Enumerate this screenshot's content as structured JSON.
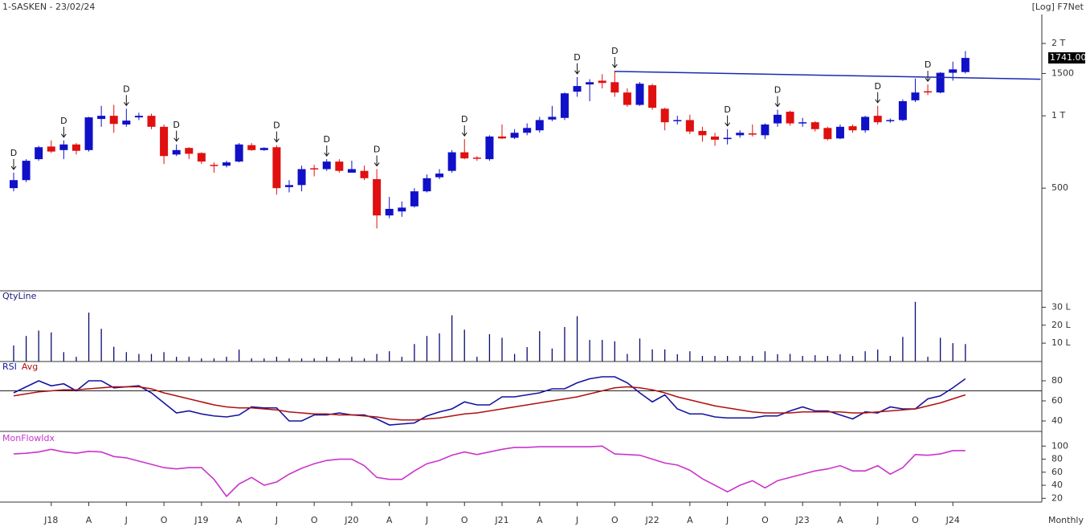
{
  "header": {
    "title": "1-SASKEN - 23/02/24",
    "scale_label": "[Log] F7Net",
    "period": "Monthly"
  },
  "chart_data": [
    {
      "type": "candlestick",
      "log": true,
      "up_color": "#1010c8",
      "down_color": "#e01010",
      "categories": [
        null,
        null,
        null,
        "J18",
        null,
        null,
        "A",
        null,
        null,
        "J",
        null,
        null,
        "O",
        null,
        null,
        "J19",
        null,
        null,
        "A",
        null,
        null,
        "J",
        null,
        null,
        "O",
        null,
        null,
        "J20",
        null,
        null,
        "A",
        null,
        null,
        "J",
        null,
        null,
        "O",
        null,
        null,
        "J21",
        null,
        null,
        "A",
        null,
        null,
        "J",
        null,
        null,
        "O",
        null,
        null,
        "J22",
        null,
        null,
        "A",
        null,
        null,
        "J",
        null,
        null,
        "O",
        null,
        null,
        "J23",
        null,
        null,
        "A",
        null,
        null,
        "J",
        null,
        null,
        "O",
        null,
        null,
        "J24",
        null
      ],
      "open": [
        500,
        540,
        660,
        745,
        720,
        760,
        720,
        970,
        1000,
        920,
        985,
        1000,
        900,
        690,
        735,
        700,
        625,
        620,
        645,
        755,
        720,
        740,
        505,
        515,
        605,
        600,
        645,
        580,
        590,
        545,
        385,
        400,
        420,
        485,
        555,
        590,
        705,
        670,
        660,
        820,
        810,
        850,
        870,
        965,
        980,
        1260,
        1350,
        1400,
        1380,
        1250,
        1110,
        1340,
        1070,
        950,
        960,
        865,
        820,
        800,
        830,
        845,
        830,
        930,
        1040,
        935,
        940,
        890,
        805,
        905,
        870,
        1000,
        950,
        960,
        1160,
        1265,
        1250,
        1510,
        1520
      ],
      "high": [
        580,
        660,
        750,
        790,
        790,
        770,
        990,
        1100,
        1110,
        1070,
        1030,
        1020,
        920,
        760,
        740,
        705,
        640,
        650,
        770,
        770,
        740,
        755,
        540,
        620,
        625,
        660,
        660,
        650,
        620,
        600,
        460,
        440,
        500,
        570,
        600,
        720,
        800,
        680,
        830,
        920,
        880,
        930,
        990,
        1100,
        1250,
        1450,
        1420,
        1490,
        1540,
        1300,
        1380,
        1360,
        1080,
        1000,
        1010,
        900,
        850,
        880,
        870,
        920,
        930,
        1060,
        1050,
        980,
        950,
        900,
        920,
        920,
        1000,
        1100,
        975,
        1170,
        1430,
        1350,
        1520,
        1680,
        1860
      ],
      "low": [
        485,
        530,
        650,
        700,
        660,
        690,
        710,
        900,
        850,
        900,
        960,
        880,
        630,
        680,
        660,
        630,
        580,
        610,
        640,
        715,
        715,
        470,
        480,
        485,
        560,
        590,
        580,
        580,
        540,
        340,
        375,
        380,
        415,
        480,
        545,
        580,
        660,
        650,
        650,
        800,
        800,
        830,
        850,
        950,
        960,
        1200,
        1150,
        1300,
        1200,
        1090,
        1100,
        1060,
        870,
        920,
        840,
        780,
        750,
        760,
        810,
        820,
        800,
        900,
        910,
        900,
        860,
        790,
        800,
        850,
        850,
        920,
        935,
        950,
        1140,
        1220,
        1240,
        1400,
        1500
      ],
      "close": [
        540,
        650,
        740,
        710,
        760,
        715,
        985,
        1000,
        925,
        955,
        1000,
        900,
        680,
        720,
        695,
        645,
        620,
        640,
        760,
        720,
        735,
        500,
        515,
        600,
        600,
        645,
        590,
        600,
        550,
        385,
        410,
        415,
        485,
        550,
        575,
        705,
        665,
        665,
        820,
        805,
        850,
        890,
        960,
        990,
        1240,
        1330,
        1380,
        1370,
        1250,
        1110,
        1360,
        1080,
        940,
        960,
        860,
        830,
        795,
        810,
        850,
        835,
        920,
        1010,
        930,
        940,
        880,
        800,
        900,
        870,
        990,
        940,
        960,
        1150,
        1250,
        1260,
        1510,
        1560,
        1741
      ],
      "ylim": [
        187,
        2640
      ],
      "yticks": [
        {
          "value": 2000,
          "label": "2 T"
        },
        1500,
        {
          "value": 1000,
          "label": "1 T"
        },
        500
      ],
      "annotations": [
        {
          "text": "D",
          "index": 0
        },
        {
          "text": "D",
          "index": 4
        },
        {
          "text": "D",
          "index": 9
        },
        {
          "text": "D",
          "index": 13
        },
        {
          "text": "D",
          "index": 21
        },
        {
          "text": "D",
          "index": 25
        },
        {
          "text": "D",
          "index": 29
        },
        {
          "text": "D",
          "index": 36
        },
        {
          "text": "D",
          "index": 45
        },
        {
          "text": "D",
          "index": 48
        },
        {
          "text": "D",
          "index": 57
        },
        {
          "text": "D",
          "index": 61
        },
        {
          "text": "D",
          "index": 69
        },
        {
          "text": "D",
          "index": 73
        }
      ],
      "level_line": {
        "color": "#1a2ab0",
        "x": [
          48,
          82
        ],
        "values": [
          1530,
          1420
        ]
      },
      "last_price": {
        "value": 1741,
        "label": "1741.00"
      }
    },
    {
      "type": "bar",
      "title": "QtyLine",
      "color": "#0a0a70",
      "values": [
        8.7,
        14,
        17,
        16,
        5,
        2.4,
        27,
        18,
        8,
        5,
        4,
        4,
        5,
        2.4,
        2.4,
        1.5,
        1.5,
        2.4,
        6.4,
        1.5,
        1.5,
        2.4,
        1.5,
        1.5,
        1.5,
        2.4,
        1.5,
        2.4,
        1.5,
        4,
        5.5,
        2.4,
        9.5,
        14,
        15.5,
        25.5,
        17.5,
        2.4,
        15,
        13,
        4,
        7.8,
        16.7,
        7,
        19,
        25,
        11.8,
        11.8,
        11,
        4,
        12.6,
        6.5,
        6.5,
        3.8,
        5.5,
        2.9,
        2.9,
        2.9,
        2.9,
        2.9,
        5.5,
        3.8,
        4,
        2.9,
        3.3,
        2.9,
        3.8,
        2.9,
        5.5,
        6.4,
        2.9,
        13.5,
        33,
        2.4,
        13,
        10,
        9.5
      ],
      "ylim": [
        0,
        37.8
      ],
      "yticks": [
        {
          "value": 10,
          "label": "10 L"
        },
        {
          "value": 20,
          "label": "20 L"
        },
        {
          "value": 30,
          "label": "30 L"
        }
      ]
    },
    {
      "type": "line",
      "reference_line": 70,
      "series": [
        {
          "name": "RSI",
          "color": "#1414a0",
          "values": [
            68,
            74,
            80,
            75,
            77,
            70,
            80,
            80,
            73,
            74,
            75,
            68,
            58,
            48,
            50,
            47,
            45,
            44,
            46,
            54,
            53,
            53,
            40,
            40,
            46,
            46,
            48,
            46,
            46,
            42,
            36,
            37,
            38,
            45,
            49,
            52,
            59,
            56,
            56,
            64,
            64,
            66,
            68,
            72,
            72,
            78,
            82,
            84,
            84,
            78,
            68,
            59,
            66,
            52,
            47,
            47,
            44,
            43,
            43,
            43,
            45,
            45,
            50,
            54,
            50,
            50,
            46,
            42,
            49,
            48,
            54,
            52,
            52,
            62,
            65,
            73,
            82
          ]
        },
        {
          "name": "Avg",
          "color": "#b01010",
          "values": [
            65,
            67,
            69,
            70,
            71,
            71,
            72,
            73,
            74,
            74,
            74,
            72,
            68,
            65,
            62,
            59,
            56,
            54,
            53,
            53,
            52,
            51,
            49,
            48,
            47,
            47,
            46,
            46,
            45,
            44,
            42,
            41,
            41,
            42,
            43,
            45,
            47,
            48,
            50,
            52,
            54,
            56,
            58,
            60,
            62,
            64,
            67,
            70,
            73,
            74,
            73,
            71,
            68,
            64,
            61,
            58,
            55,
            53,
            51,
            49,
            48,
            48,
            48,
            49,
            49,
            49,
            49,
            48,
            48,
            49,
            50,
            51,
            52,
            55,
            58,
            62,
            66
          ]
        }
      ],
      "ylim": [
        29.6,
        98.4
      ],
      "yticks": [
        40,
        60,
        80
      ]
    },
    {
      "type": "line",
      "series": [
        {
          "name": "MonFlowIdx",
          "color": "#cc33cc",
          "values": [
            88,
            89,
            91,
            95,
            91,
            89,
            92,
            91,
            84,
            82,
            77,
            72,
            67,
            65,
            67,
            67,
            49,
            23,
            42,
            52,
            40,
            45,
            57,
            66,
            73,
            78,
            80,
            80,
            70,
            52,
            49,
            49,
            62,
            73,
            78,
            86,
            91,
            87,
            91,
            95,
            98,
            98,
            99,
            99,
            99,
            99,
            99,
            100,
            88,
            87,
            86,
            80,
            74,
            71,
            63,
            50,
            40,
            30,
            40,
            47,
            36,
            47,
            52,
            57,
            62,
            65,
            70,
            62,
            62,
            70,
            57,
            67,
            87,
            86,
            88,
            93,
            93
          ]
        }
      ],
      "ylim": [
        14.2,
        118.8
      ],
      "yticks": [
        20,
        40,
        60,
        80,
        100
      ]
    }
  ]
}
